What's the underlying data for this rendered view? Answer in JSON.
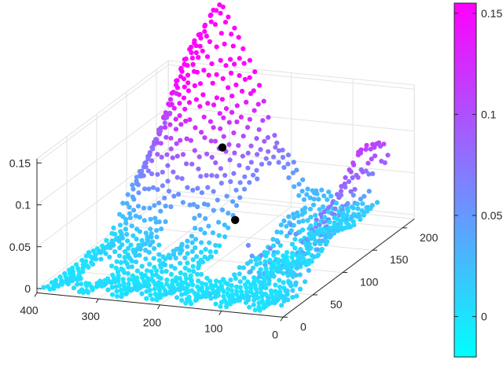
{
  "chart_data": {
    "type": "scatter",
    "subtype": "3d-scatter",
    "colormap": {
      "low": "#00FFFF",
      "high": "#FF00FF",
      "name": "cool"
    },
    "background": "#ffffff",
    "grid": true,
    "axes": {
      "x": {
        "ticks": [
          0,
          100,
          200,
          300,
          400
        ],
        "range": [
          0,
          400
        ]
      },
      "y": {
        "ticks": [
          0,
          50,
          100,
          150,
          200
        ],
        "range": [
          0,
          220
        ]
      },
      "z": {
        "ticks": [
          0,
          0.05,
          0.1,
          0.15
        ],
        "tick_labels": [
          "0",
          "0.05",
          "0.1",
          "0.15"
        ],
        "range": [
          -0.005,
          0.155
        ]
      }
    },
    "colorbar": {
      "ticks": [
        0,
        0.05,
        0.1,
        0.15
      ],
      "tick_labels": [
        "0",
        "0.05",
        "0.1",
        "0.15"
      ],
      "range": [
        -0.02,
        0.155
      ],
      "placement": "right"
    },
    "highlight_points": [
      {
        "x": 215,
        "y": 120,
        "z": 0.118,
        "color": "#000000"
      },
      {
        "x": 170,
        "y": 95,
        "z": 0.048,
        "color": "#000000"
      }
    ],
    "surface_description": "scattered surface samples, peak near x=300,y=200"
  }
}
